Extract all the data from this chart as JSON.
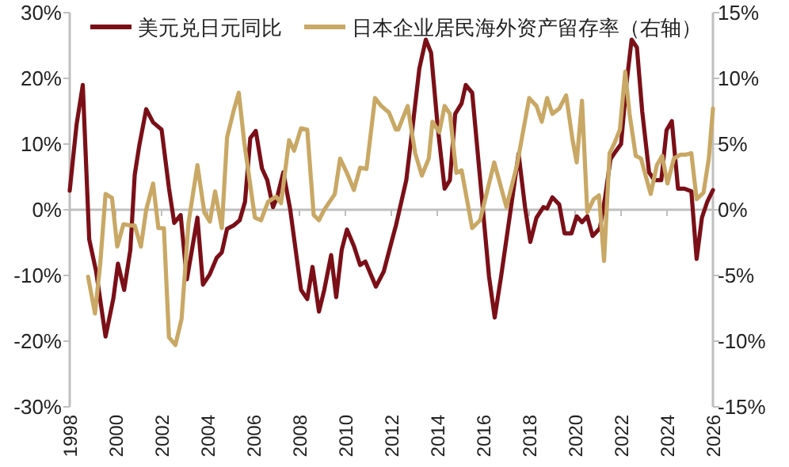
{
  "chart_data": {
    "type": "line",
    "legend": "top",
    "marker": "none",
    "line_style": "solid",
    "xlim": [
      1998,
      2026
    ],
    "xticks": [
      1998,
      2000,
      2002,
      2004,
      2006,
      2008,
      2010,
      2012,
      2014,
      2016,
      2018,
      2020,
      2022,
      2024,
      2026
    ],
    "ylim": [
      -30,
      30
    ],
    "yticks": [
      {
        "value": -30,
        "label": "-30%"
      },
      {
        "value": -20,
        "label": "-20%"
      },
      {
        "value": -10,
        "label": "-10%"
      },
      {
        "value": 0,
        "label": "0%"
      },
      {
        "value": 10,
        "label": "10%"
      },
      {
        "value": 20,
        "label": "20%"
      },
      {
        "value": 30,
        "label": "30%"
      }
    ],
    "y2lim": [
      -15,
      15
    ],
    "y2ticks": [
      {
        "value": -15,
        "label": "-15%"
      },
      {
        "value": -10,
        "label": "-10%"
      },
      {
        "value": -5,
        "label": "-5%"
      },
      {
        "value": 0,
        "label": "0%"
      },
      {
        "value": 5,
        "label": "5%"
      },
      {
        "value": 10,
        "label": "10%"
      },
      {
        "value": 15,
        "label": "15%"
      }
    ],
    "series": [
      {
        "name": "美元兑日元同比",
        "color": "#7b0f17",
        "x": [
          1998.0,
          1998.3,
          1998.57,
          1998.85,
          1999.15,
          1999.56,
          1999.9,
          2000.1,
          2000.37,
          2000.64,
          2000.83,
          2001.03,
          2001.33,
          2001.63,
          2002.0,
          2002.32,
          2002.55,
          2002.83,
          2003.1,
          2003.56,
          2003.8,
          2004.1,
          2004.4,
          2004.62,
          2004.85,
          2005.13,
          2005.4,
          2005.63,
          2005.86,
          2006.1,
          2006.37,
          2006.6,
          2006.85,
          2007.03,
          2007.3,
          2007.6,
          2008.07,
          2008.34,
          2008.57,
          2008.85,
          2009.08,
          2009.38,
          2009.6,
          2009.84,
          2010.07,
          2010.37,
          2010.64,
          2010.87,
          2011.33,
          2011.67,
          2012.0,
          2012.2,
          2012.65,
          2012.87,
          2013.22,
          2013.5,
          2013.73,
          2014.02,
          2014.32,
          2014.55,
          2014.78,
          2015.06,
          2015.24,
          2015.52,
          2016.02,
          2016.25,
          2016.5,
          2016.78,
          2017.08,
          2017.54,
          2017.82,
          2018.05,
          2018.32,
          2018.62,
          2018.78,
          2019.01,
          2019.31,
          2019.54,
          2019.84,
          2020.07,
          2020.3,
          2020.53,
          2020.76,
          2021.08,
          2021.31,
          2021.54,
          2021.77,
          2022.0,
          2022.23,
          2022.46,
          2022.69,
          2022.92,
          2023.22,
          2023.45,
          2023.75,
          2023.98,
          2024.21,
          2024.48,
          2024.76,
          2025.06,
          2025.29,
          2025.52,
          2025.75,
          2026.0
        ],
        "values": [
          2.9,
          13,
          19,
          -4.5,
          -9.4,
          -19.3,
          -13.5,
          -8.2,
          -12.2,
          -6.1,
          5.3,
          9.8,
          15.3,
          13.3,
          12.2,
          3.3,
          -2,
          -0.8,
          -10.6,
          -1.2,
          -11.4,
          -9.8,
          -7.3,
          -6.5,
          -2.9,
          -2.4,
          -1.6,
          1.2,
          10.9,
          12,
          6.3,
          4.5,
          0.4,
          1.9,
          5.7,
          0,
          -12.2,
          -13.6,
          -8.7,
          -15.5,
          -12.2,
          -6.9,
          -13.3,
          -6.1,
          -3,
          -5.5,
          -8.4,
          -7.9,
          -11.7,
          -9.4,
          -5,
          -2.4,
          4.5,
          10.9,
          21.5,
          25.9,
          23.9,
          12.6,
          3.2,
          4.5,
          14.6,
          16.2,
          19,
          17.8,
          -1.2,
          -10.1,
          -16.4,
          -10.1,
          -2.8,
          8.5,
          0.4,
          -4.9,
          -1.2,
          0.4,
          0.2,
          1.9,
          0.8,
          -3.6,
          -3.6,
          -1,
          -1.9,
          -1,
          -4,
          -2.8,
          2,
          7.7,
          8.9,
          10,
          19,
          25.9,
          24.7,
          15,
          5.7,
          4.5,
          4.5,
          12.1,
          13.5,
          3.2,
          3.2,
          2.8,
          -7.5,
          -1.2,
          1.2,
          3
        ]
      },
      {
        "name": "日本企业居民海外资产留存率（右轴）",
        "color": "#c9a865",
        "axis": "y2",
        "x": [
          1998.8,
          1999.1,
          1999.33,
          1999.56,
          1999.84,
          2000.07,
          2000.34,
          2000.64,
          2000.83,
          2001.1,
          2001.33,
          2001.63,
          2001.86,
          2002.1,
          2002.32,
          2002.6,
          2002.87,
          2003.17,
          2003.56,
          2003.86,
          2004.1,
          2004.33,
          2004.62,
          2004.85,
          2005.13,
          2005.36,
          2005.6,
          2006.06,
          2006.33,
          2006.63,
          2006.98,
          2007.2,
          2007.55,
          2007.77,
          2008.07,
          2008.34,
          2008.62,
          2008.85,
          2009.08,
          2009.54,
          2009.77,
          2010.07,
          2010.37,
          2010.64,
          2010.92,
          2011.29,
          2011.56,
          2011.9,
          2012.2,
          2012.3,
          2012.71,
          2013.04,
          2013.33,
          2013.63,
          2013.79,
          2014.09,
          2014.32,
          2014.55,
          2014.83,
          2015.06,
          2015.52,
          2015.86,
          2016.48,
          2017.01,
          2017.47,
          2018.0,
          2018.32,
          2018.55,
          2018.78,
          2019.01,
          2019.31,
          2019.61,
          2019.89,
          2020.07,
          2020.3,
          2020.53,
          2020.81,
          2021.04,
          2021.26,
          2021.5,
          2021.72,
          2021.95,
          2022.18,
          2022.37,
          2022.64,
          2022.87,
          2023.1,
          2023.29,
          2023.56,
          2023.79,
          2024.02,
          2024.3,
          2024.6,
          2024.83,
          2025.06,
          2025.29,
          2025.59,
          2025.82,
          2026.0
        ],
        "values": [
          -5.1,
          -7.9,
          -4.1,
          1.2,
          0.9,
          -2.8,
          -1.1,
          -1.2,
          -1.2,
          -2.8,
          0,
          2,
          -1.4,
          -1.4,
          -9.7,
          -10.3,
          -8.3,
          -1,
          3.4,
          -0.2,
          -0.9,
          1.4,
          -1.4,
          5.5,
          7.5,
          8.9,
          5.1,
          -0.6,
          -0.8,
          0.6,
          1,
          0.5,
          5.3,
          4.5,
          6.2,
          6.1,
          -0.4,
          -0.8,
          0,
          1.2,
          3.9,
          2.8,
          1.5,
          3.2,
          3.1,
          8.5,
          7.9,
          7.4,
          6.1,
          6.1,
          7.9,
          4.3,
          2.6,
          3.9,
          6.7,
          5.9,
          7.9,
          7.3,
          2.8,
          3,
          -1.4,
          -0.8,
          3.6,
          0.2,
          3.4,
          8.5,
          7.9,
          6.7,
          8.5,
          7.3,
          7.7,
          8.7,
          5.3,
          3.6,
          8.3,
          -0.2,
          0.8,
          1.1,
          -3.9,
          4.3,
          5.1,
          6.1,
          10.5,
          7.3,
          4.1,
          3.9,
          2.4,
          1.2,
          3.4,
          4.1,
          2,
          3.9,
          4.2,
          4.2,
          4.3,
          0.8,
          1.3,
          3.9,
          7.7
        ]
      }
    ]
  }
}
